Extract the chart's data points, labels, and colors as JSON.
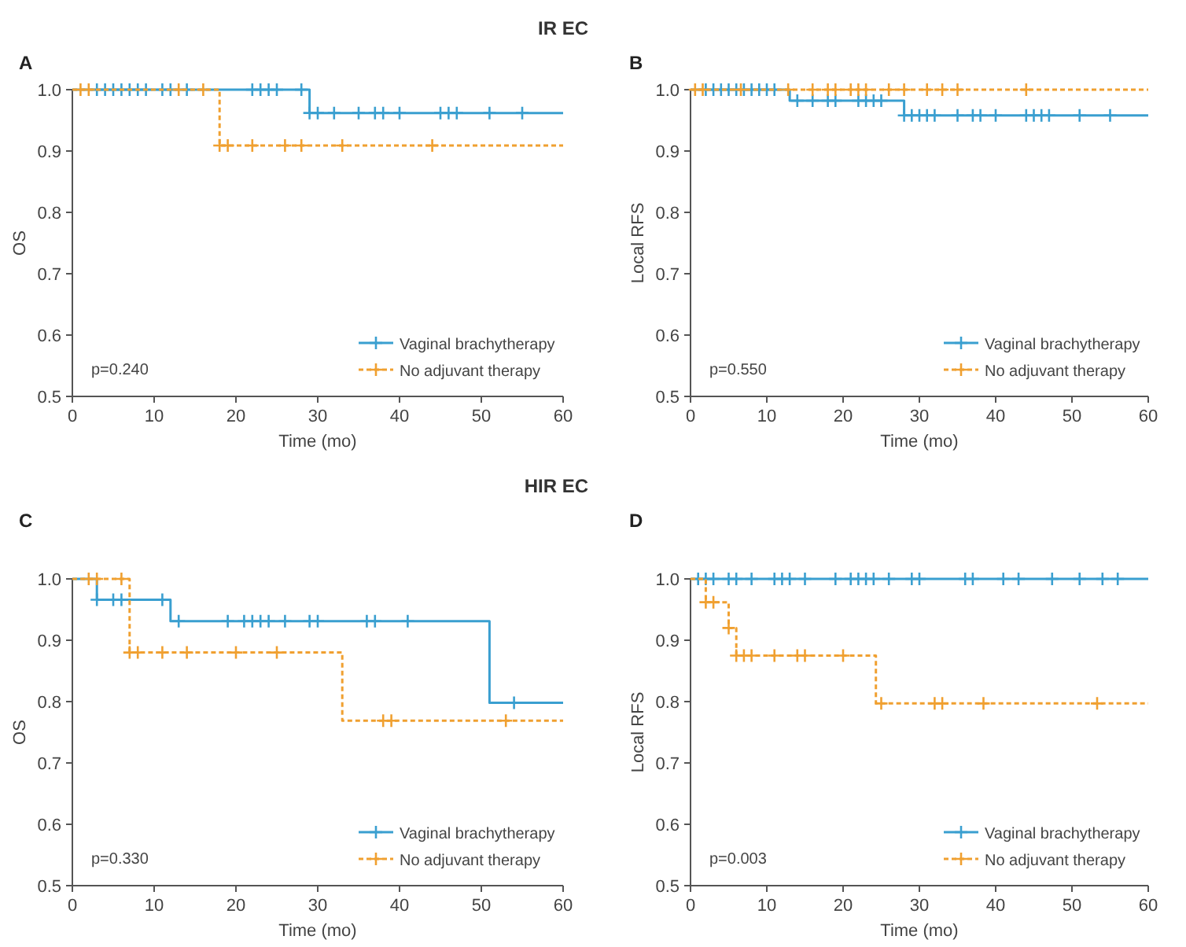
{
  "chart_data": [
    {
      "type": "step",
      "title": "A",
      "subtitle": "IR EC",
      "xlabel": "Time (mo)",
      "ylabel": "OS",
      "annotations": [
        "p=0.240"
      ],
      "xlim": [
        0,
        60
      ],
      "xticks": [
        0,
        10,
        20,
        30,
        40,
        50,
        60
      ],
      "ylim": [
        0.5,
        1
      ],
      "yticks": [
        {
          "value": 0.5,
          "label": "0.5"
        },
        {
          "value": 0.6,
          "label": "0.6"
        },
        {
          "value": 0.7,
          "label": "0.7"
        },
        {
          "value": 0.8,
          "label": "0.8"
        },
        {
          "value": 0.9,
          "label": "0.9"
        },
        {
          "value": 1,
          "label": "1.0"
        }
      ],
      "grid": false,
      "legend": "bottom right",
      "series": [
        {
          "name": "Vaginal brachytherapy",
          "color": "#3a9fd0",
          "line_style": "solid",
          "x": [
            0,
            29,
            60
          ],
          "values": [
            1,
            0.962,
            0.962
          ]
        },
        {
          "type": "scatter",
          "color": "#3a9fd0",
          "marker": "cross",
          "x": [
            3,
            4,
            5,
            6,
            7,
            8,
            9,
            11,
            12,
            14,
            22,
            23,
            24,
            25,
            28,
            29,
            30,
            32,
            35,
            37,
            38,
            40,
            45,
            46,
            47,
            51,
            55
          ],
          "values": [
            1,
            1,
            1,
            1,
            1,
            1,
            1,
            1,
            1,
            1,
            1,
            1,
            1,
            1,
            1,
            0.962,
            0.962,
            0.962,
            0.962,
            0.962,
            0.962,
            0.962,
            0.962,
            0.962,
            0.962,
            0.962,
            0.962
          ]
        },
        {
          "name": "No adjuvant therapy",
          "color": "#f0a030",
          "line_style": "dashed",
          "x": [
            0,
            18,
            60
          ],
          "values": [
            1,
            0.909,
            0.909
          ]
        },
        {
          "type": "scatter",
          "color": "#f0a030",
          "marker": "cross",
          "x": [
            1,
            2,
            13,
            16,
            18,
            19,
            22,
            26,
            28,
            33,
            44
          ],
          "values": [
            1,
            1,
            1,
            1,
            0.909,
            0.909,
            0.909,
            0.909,
            0.909,
            0.909,
            0.909
          ]
        }
      ]
    },
    {
      "type": "step",
      "title": "B",
      "xlabel": "Time (mo)",
      "ylabel": "Local RFS",
      "annotations": [
        "p=0.550"
      ],
      "xlim": [
        0,
        60
      ],
      "xticks": [
        0,
        10,
        20,
        30,
        40,
        50,
        60
      ],
      "ylim": [
        0.5,
        1
      ],
      "yticks": [
        {
          "value": 0.5,
          "label": "0.5"
        },
        {
          "value": 0.6,
          "label": "0.6"
        },
        {
          "value": 0.7,
          "label": "0.7"
        },
        {
          "value": 0.8,
          "label": "0.8"
        },
        {
          "value": 0.9,
          "label": "0.9"
        },
        {
          "value": 1,
          "label": "1.0"
        }
      ],
      "grid": false,
      "legend": "bottom right",
      "series": [
        {
          "name": "Vaginal brachytherapy",
          "color": "#3a9fd0",
          "line_style": "solid",
          "x": [
            0,
            13,
            28,
            60
          ],
          "values": [
            1,
            0.982,
            0.958,
            0.958
          ]
        },
        {
          "type": "scatter",
          "color": "#3a9fd0",
          "marker": "cross",
          "x": [
            2,
            3,
            4,
            5,
            6,
            7,
            8,
            9,
            10,
            11,
            14,
            16,
            18,
            19,
            22,
            23,
            24,
            25,
            28,
            29,
            30,
            31,
            32,
            35,
            37,
            38,
            40,
            44,
            45,
            46,
            47,
            51,
            55
          ],
          "values": [
            1,
            1,
            1,
            1,
            1,
            1,
            1,
            1,
            1,
            1,
            0.982,
            0.982,
            0.982,
            0.982,
            0.982,
            0.982,
            0.982,
            0.982,
            0.958,
            0.958,
            0.958,
            0.958,
            0.958,
            0.958,
            0.958,
            0.958,
            0.958,
            0.958,
            0.958,
            0.958,
            0.958,
            0.958,
            0.958
          ]
        },
        {
          "name": "No adjuvant therapy",
          "color": "#f0a030",
          "line_style": "dashed",
          "x": [
            0,
            60
          ],
          "values": [
            1,
            1
          ]
        },
        {
          "type": "scatter",
          "color": "#f0a030",
          "marker": "cross",
          "x": [
            0.6,
            1.6,
            6.6,
            12.8,
            16,
            18,
            19,
            21,
            22,
            23,
            26,
            28,
            31,
            33,
            35,
            44
          ],
          "values": [
            1,
            1,
            1,
            1,
            1,
            1,
            1,
            1,
            1,
            1,
            1,
            1,
            1,
            1,
            1,
            1
          ]
        }
      ]
    },
    {
      "type": "step",
      "title": "C",
      "subtitle": "HIR EC",
      "xlabel": "Time (mo)",
      "ylabel": "OS",
      "annotations": [
        "p=0.330"
      ],
      "xlim": [
        0,
        60
      ],
      "xticks": [
        0,
        10,
        20,
        30,
        40,
        50,
        60
      ],
      "ylim": [
        0.5,
        1
      ],
      "yticks": [
        {
          "value": 0.5,
          "label": "0.5"
        },
        {
          "value": 0.6,
          "label": "0.6"
        },
        {
          "value": 0.7,
          "label": "0.7"
        },
        {
          "value": 0.8,
          "label": "0.8"
        },
        {
          "value": 0.9,
          "label": "0.9"
        },
        {
          "value": 1,
          "label": "1.0"
        }
      ],
      "grid": false,
      "legend": "bottom right",
      "series": [
        {
          "name": "Vaginal brachytherapy",
          "color": "#3a9fd0",
          "line_style": "solid",
          "x": [
            0,
            3,
            12,
            51,
            60
          ],
          "values": [
            1,
            0.966,
            0.931,
            0.798,
            0.798
          ]
        },
        {
          "type": "scatter",
          "color": "#3a9fd0",
          "marker": "cross",
          "x": [
            3,
            5,
            6,
            11,
            13,
            19,
            21,
            22,
            23,
            24,
            26,
            29,
            30,
            36,
            37,
            41,
            54
          ],
          "values": [
            0.966,
            0.966,
            0.966,
            0.966,
            0.931,
            0.931,
            0.931,
            0.931,
            0.931,
            0.931,
            0.931,
            0.931,
            0.931,
            0.931,
            0.931,
            0.931,
            0.798
          ]
        },
        {
          "name": "No adjuvant therapy",
          "color": "#f0a030",
          "line_style": "dashed",
          "x": [
            0,
            7,
            33,
            60
          ],
          "values": [
            1,
            0.88,
            0.769,
            0.769
          ]
        },
        {
          "type": "scatter",
          "color": "#f0a030",
          "marker": "cross",
          "x": [
            2,
            3,
            6,
            7,
            8,
            11,
            14,
            20,
            25,
            38,
            39,
            53
          ],
          "values": [
            1,
            1,
            1,
            0.88,
            0.88,
            0.88,
            0.88,
            0.88,
            0.88,
            0.769,
            0.769,
            0.769
          ]
        }
      ]
    },
    {
      "type": "step",
      "title": "D",
      "xlabel": "Time (mo)",
      "ylabel": "Local RFS",
      "annotations": [
        "p=0.003"
      ],
      "xlim": [
        0,
        60
      ],
      "xticks": [
        0,
        10,
        20,
        30,
        40,
        50,
        60
      ],
      "ylim": [
        0.5,
        1
      ],
      "yticks": [
        {
          "value": 0.5,
          "label": "0.5"
        },
        {
          "value": 0.6,
          "label": "0.6"
        },
        {
          "value": 0.7,
          "label": "0.7"
        },
        {
          "value": 0.8,
          "label": "0.8"
        },
        {
          "value": 0.9,
          "label": "0.9"
        },
        {
          "value": 1,
          "label": "1.0"
        }
      ],
      "grid": false,
      "legend": "bottom right",
      "series": [
        {
          "name": "Vaginal brachytherapy",
          "color": "#3a9fd0",
          "line_style": "solid",
          "x": [
            0,
            60
          ],
          "values": [
            1,
            1
          ]
        },
        {
          "type": "scatter",
          "color": "#3a9fd0",
          "marker": "cross",
          "x": [
            1,
            2,
            3,
            5,
            6,
            8,
            11,
            12,
            13,
            15,
            19,
            21,
            22,
            23,
            24,
            26,
            29,
            30,
            36,
            37,
            41,
            43,
            47.4,
            51,
            54,
            56
          ],
          "values": [
            1,
            1,
            1,
            1,
            1,
            1,
            1,
            1,
            1,
            1,
            1,
            1,
            1,
            1,
            1,
            1,
            1,
            1,
            1,
            1,
            1,
            1,
            1,
            1,
            1,
            1
          ]
        },
        {
          "name": "No adjuvant therapy",
          "color": "#f0a030",
          "line_style": "dashed",
          "x": [
            0,
            2,
            5,
            6,
            24.3,
            60
          ],
          "values": [
            1,
            0.962,
            0.92,
            0.875,
            0.797,
            0.797
          ]
        },
        {
          "type": "scatter",
          "color": "#f0a030",
          "marker": "cross",
          "x": [
            2,
            3,
            5,
            6,
            7,
            8,
            11,
            14,
            15,
            20,
            25,
            32,
            33,
            38.4,
            53.3
          ],
          "values": [
            0.962,
            0.962,
            0.92,
            0.875,
            0.875,
            0.875,
            0.875,
            0.875,
            0.875,
            0.875,
            0.797,
            0.797,
            0.797,
            0.797,
            0.797
          ]
        }
      ]
    }
  ]
}
